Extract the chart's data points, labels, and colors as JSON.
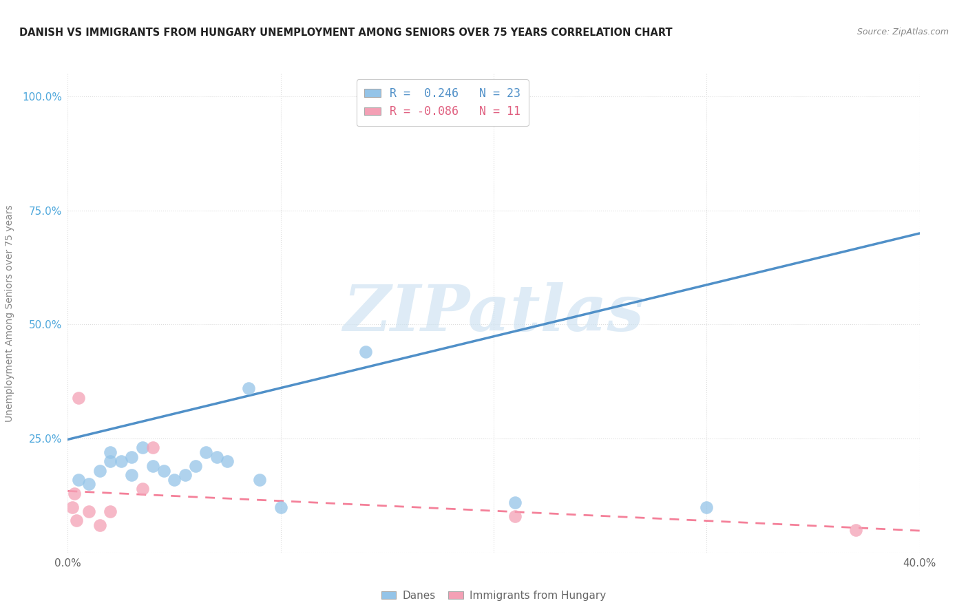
{
  "title": "DANISH VS IMMIGRANTS FROM HUNGARY UNEMPLOYMENT AMONG SENIORS OVER 75 YEARS CORRELATION CHART",
  "source": "Source: ZipAtlas.com",
  "ylabel": "Unemployment Among Seniors over 75 years",
  "xlim": [
    0.0,
    0.4
  ],
  "ylim": [
    0.0,
    1.05
  ],
  "x_tick_vals": [
    0.0,
    0.1,
    0.2,
    0.3,
    0.4
  ],
  "x_tick_labels": [
    "0.0%",
    "",
    "",
    "",
    "40.0%"
  ],
  "y_tick_vals": [
    0.0,
    0.25,
    0.5,
    0.75,
    1.0
  ],
  "y_tick_labels": [
    "",
    "25.0%",
    "50.0%",
    "75.0%",
    "100.0%"
  ],
  "danes_color": "#94C4E8",
  "hungary_color": "#F4A0B5",
  "danes_line_color": "#5090C8",
  "hungary_line_color": "#F48099",
  "danes_R": 0.246,
  "danes_N": 23,
  "hungary_R": -0.086,
  "hungary_N": 11,
  "danes_scatter_x": [
    0.005,
    0.01,
    0.015,
    0.02,
    0.02,
    0.025,
    0.03,
    0.03,
    0.035,
    0.04,
    0.045,
    0.05,
    0.055,
    0.06,
    0.065,
    0.07,
    0.075,
    0.085,
    0.09,
    0.1,
    0.14,
    0.21,
    0.3
  ],
  "danes_scatter_y": [
    0.16,
    0.15,
    0.18,
    0.2,
    0.22,
    0.2,
    0.17,
    0.21,
    0.23,
    0.19,
    0.18,
    0.16,
    0.17,
    0.19,
    0.22,
    0.21,
    0.2,
    0.36,
    0.16,
    0.1,
    0.44,
    0.11,
    0.1
  ],
  "hungary_scatter_x": [
    0.002,
    0.003,
    0.004,
    0.005,
    0.01,
    0.015,
    0.02,
    0.035,
    0.04,
    0.21,
    0.37
  ],
  "hungary_scatter_y": [
    0.1,
    0.13,
    0.07,
    0.34,
    0.09,
    0.06,
    0.09,
    0.14,
    0.23,
    0.08,
    0.05
  ],
  "danes_trend_x0": 0.0,
  "danes_trend_y0": 0.248,
  "danes_trend_x1": 0.4,
  "danes_trend_y1": 0.7,
  "hungary_trend_x0": 0.0,
  "hungary_trend_y0": 0.135,
  "hungary_trend_x1": 0.4,
  "hungary_trend_y1": 0.048,
  "background_color": "#FFFFFF",
  "watermark_text": "ZIPatlas",
  "watermark_color": "#C8DFF0",
  "watermark_alpha": 0.6,
  "tick_color": "#4FA8DC",
  "ylabel_color": "#888888",
  "grid_color": "#DDDDDD"
}
